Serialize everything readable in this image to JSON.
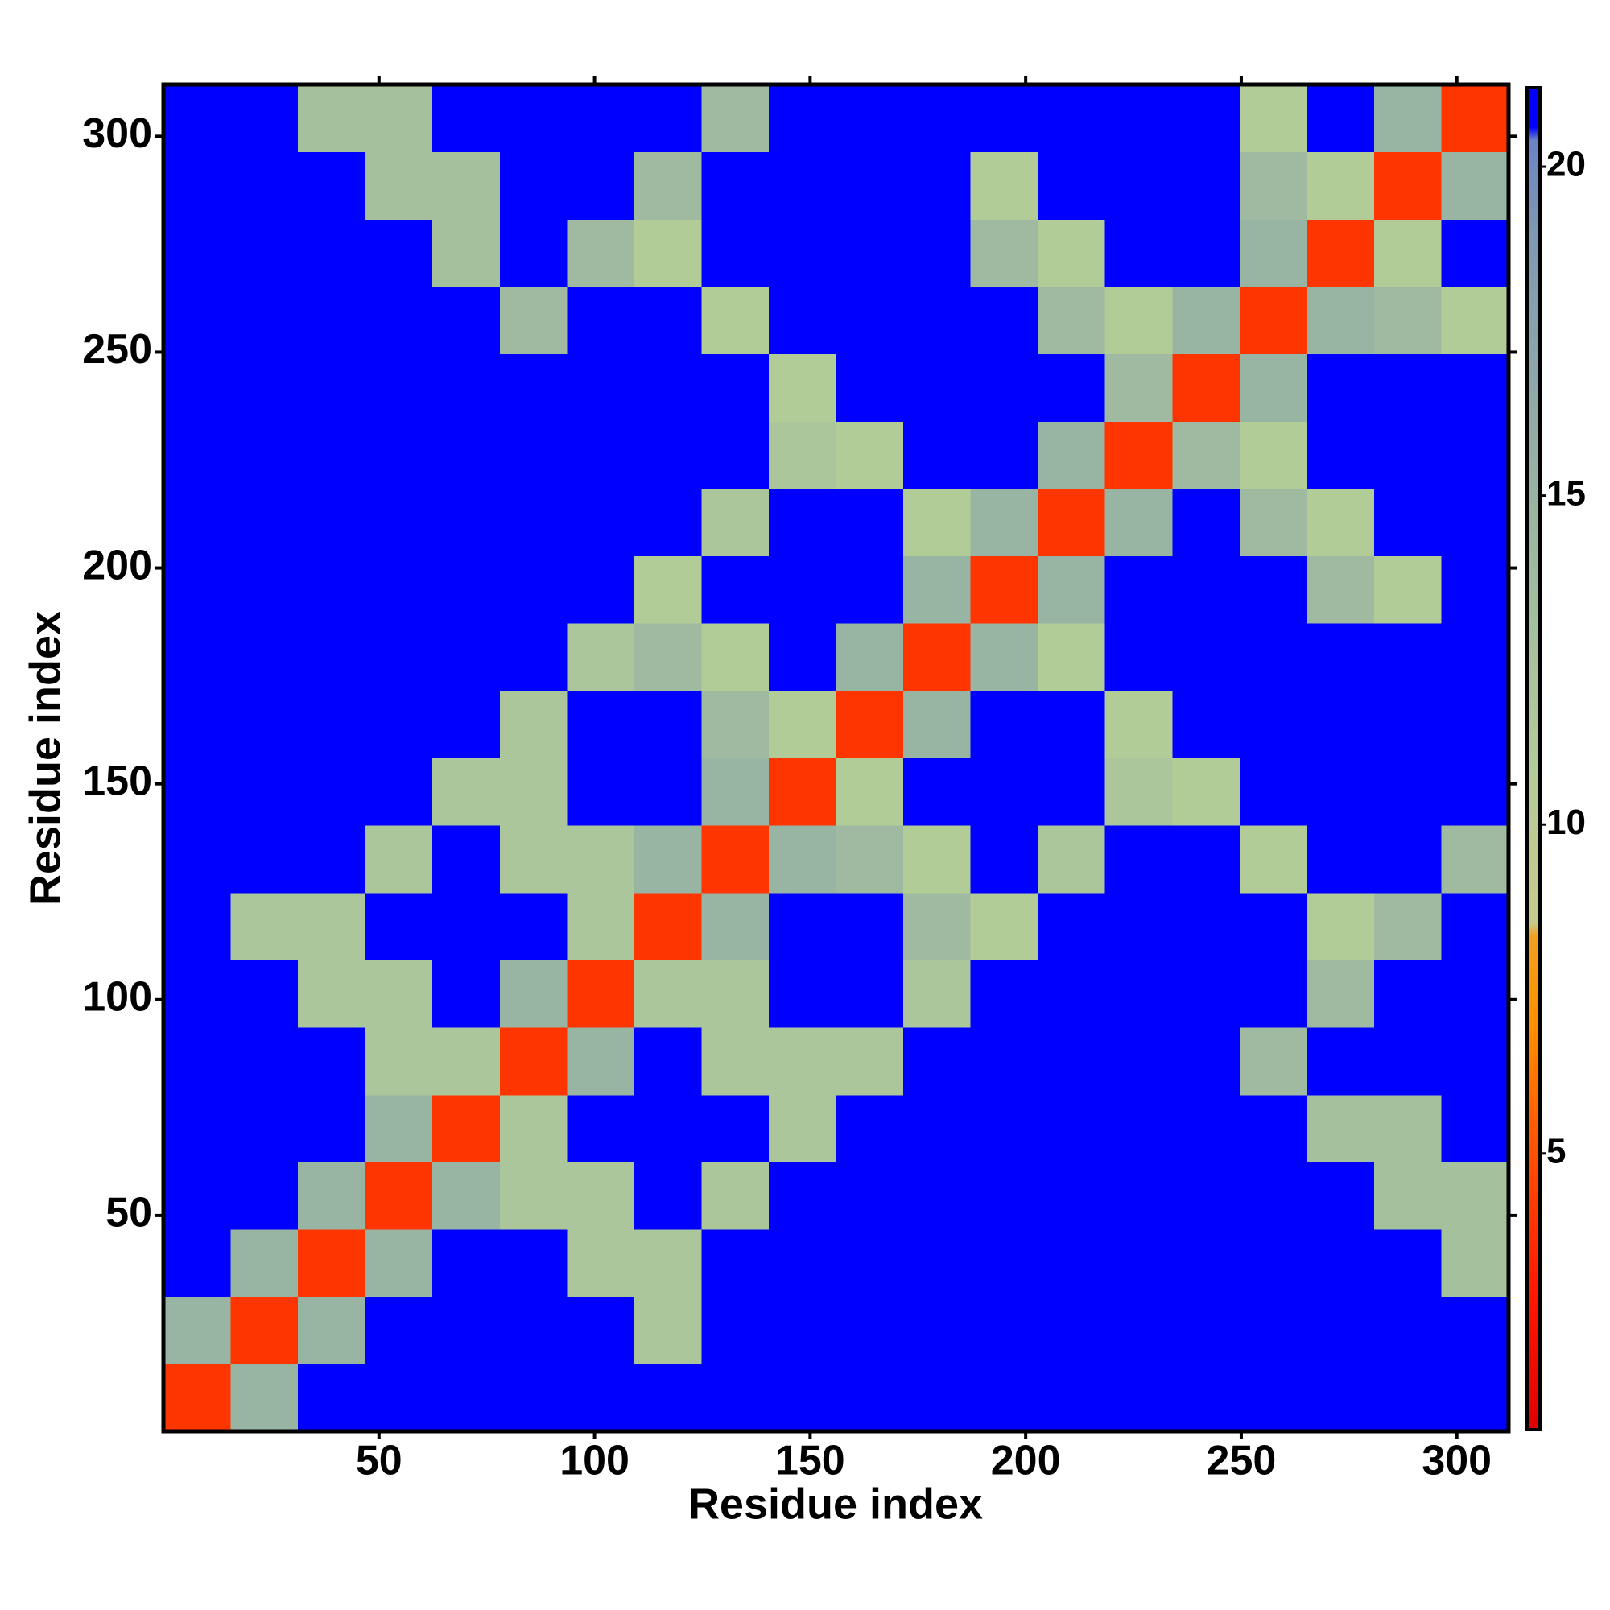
{
  "chart_data": {
    "type": "heatmap",
    "xlabel": "Residue index",
    "ylabel": "Residue index",
    "x": [
      7.8,
      23.4,
      39,
      54.6,
      70.2,
      85.8,
      101.4,
      117,
      132.6,
      148.2,
      163.8,
      179.4,
      195,
      210.6,
      226.2,
      241.8,
      257.4,
      273,
      288.6,
      304.2
    ],
    "y": [
      7.8,
      23.4,
      39,
      54.6,
      70.2,
      85.8,
      101.4,
      117,
      132.6,
      148.2,
      163.8,
      179.4,
      195,
      210.6,
      226.2,
      241.8,
      257.4,
      273,
      288.6,
      304.2
    ],
    "values": [
      [
        4,
        15,
        21,
        21,
        21,
        21,
        21,
        21,
        21,
        21,
        21,
        21,
        21,
        21,
        21,
        21,
        21,
        21,
        21,
        21
      ],
      [
        15,
        4,
        15,
        21,
        21,
        21,
        21,
        12,
        21,
        21,
        21,
        21,
        21,
        21,
        21,
        21,
        21,
        21,
        21,
        21
      ],
      [
        21,
        15,
        4,
        15,
        21,
        21,
        12,
        12,
        21,
        21,
        21,
        21,
        21,
        21,
        21,
        21,
        21,
        21,
        21,
        13
      ],
      [
        21,
        21,
        15,
        4,
        15,
        12,
        12,
        21,
        12,
        21,
        21,
        21,
        21,
        21,
        21,
        21,
        21,
        21,
        13,
        13
      ],
      [
        21,
        21,
        21,
        15,
        4,
        12,
        21,
        21,
        21,
        12,
        21,
        21,
        21,
        21,
        21,
        21,
        21,
        13,
        13,
        21
      ],
      [
        21,
        21,
        21,
        12,
        12,
        4,
        15,
        21,
        12,
        12,
        12,
        21,
        21,
        21,
        21,
        21,
        14,
        21,
        21,
        21
      ],
      [
        21,
        21,
        12,
        12,
        21,
        15,
        4,
        12,
        12,
        21,
        21,
        12,
        21,
        21,
        21,
        21,
        21,
        14,
        21,
        21
      ],
      [
        21,
        12,
        12,
        21,
        21,
        21,
        12,
        4,
        15,
        21,
        21,
        14,
        11,
        21,
        21,
        21,
        21,
        11,
        14,
        21
      ],
      [
        21,
        21,
        21,
        12,
        21,
        12,
        12,
        15,
        4,
        15,
        14,
        11,
        21,
        12,
        21,
        21,
        11,
        21,
        21,
        14
      ],
      [
        21,
        21,
        21,
        21,
        12,
        12,
        21,
        21,
        15,
        4,
        11,
        21,
        21,
        21,
        12,
        11,
        21,
        21,
        21,
        21
      ],
      [
        21,
        21,
        21,
        21,
        21,
        12,
        21,
        21,
        14,
        11,
        4,
        15,
        21,
        21,
        11,
        21,
        21,
        21,
        21,
        21
      ],
      [
        21,
        21,
        21,
        21,
        21,
        21,
        12,
        14,
        11,
        21,
        15,
        4,
        15,
        11,
        21,
        21,
        21,
        21,
        21,
        21
      ],
      [
        21,
        21,
        21,
        21,
        21,
        21,
        21,
        11,
        21,
        21,
        21,
        15,
        4,
        15,
        21,
        21,
        21,
        14,
        11,
        21
      ],
      [
        21,
        21,
        21,
        21,
        21,
        21,
        21,
        21,
        12,
        21,
        21,
        11,
        15,
        4,
        15,
        21,
        14,
        11,
        21,
        21
      ],
      [
        21,
        21,
        21,
        21,
        21,
        21,
        21,
        21,
        21,
        12,
        11,
        21,
        21,
        15,
        4,
        14,
        11,
        21,
        21,
        21
      ],
      [
        21,
        21,
        21,
        21,
        21,
        21,
        21,
        21,
        21,
        11,
        21,
        21,
        21,
        21,
        14,
        4,
        15,
        21,
        21,
        21
      ],
      [
        21,
        21,
        21,
        21,
        21,
        14,
        21,
        21,
        11,
        21,
        21,
        21,
        21,
        14,
        11,
        15,
        4,
        15,
        14,
        11
      ],
      [
        21,
        21,
        21,
        21,
        13,
        21,
        14,
        11,
        21,
        21,
        21,
        21,
        14,
        11,
        21,
        21,
        15,
        4,
        11,
        21
      ],
      [
        21,
        21,
        21,
        13,
        13,
        21,
        21,
        14,
        21,
        21,
        21,
        21,
        11,
        21,
        21,
        21,
        14,
        11,
        4,
        15
      ],
      [
        21,
        21,
        13,
        13,
        21,
        21,
        21,
        21,
        14,
        21,
        21,
        21,
        21,
        21,
        21,
        21,
        11,
        21,
        15,
        4
      ]
    ],
    "xlim": [
      0,
      312
    ],
    "ylim": [
      0,
      312
    ],
    "xticks": [
      50,
      100,
      150,
      200,
      250,
      300
    ],
    "yticks": [
      50,
      100,
      150,
      200,
      250,
      300
    ],
    "colorscale": [
      [
        0.8,
        "#e00000"
      ],
      [
        3,
        "#ff1a00"
      ],
      [
        5,
        "#ff5000"
      ],
      [
        7,
        "#ff9000"
      ],
      [
        8.3,
        "#f0a020"
      ],
      [
        8.5,
        "#c9c98c"
      ],
      [
        11,
        "#b2cc98"
      ],
      [
        15,
        "#98b4a2"
      ],
      [
        19,
        "#7f98b4"
      ],
      [
        20.4,
        "#6a84c4"
      ],
      [
        20.6,
        "#0000ff"
      ],
      [
        21.2,
        "#0000ff"
      ]
    ],
    "colorbar": {
      "lim": [
        0.8,
        21.2
      ],
      "ticks": [
        5,
        10,
        15,
        20
      ]
    }
  }
}
